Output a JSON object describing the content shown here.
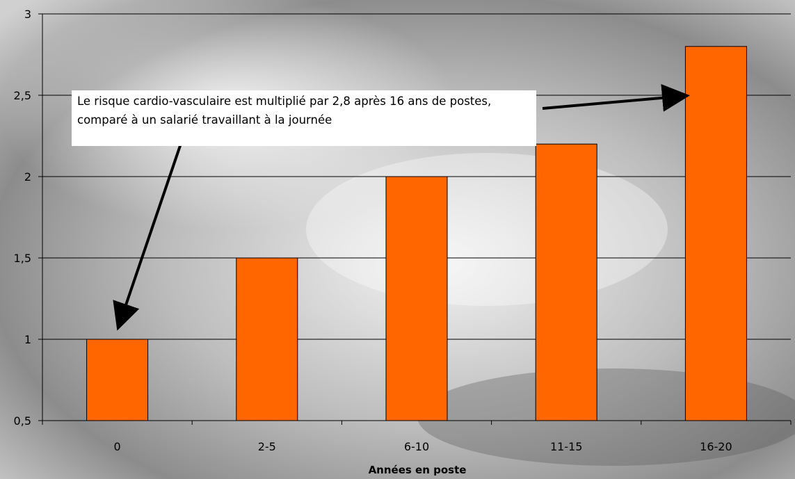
{
  "chart_data": {
    "type": "bar",
    "categories": [
      "0",
      "2-5",
      "6-10",
      "11-15",
      "16-20"
    ],
    "values": [
      1.0,
      1.5,
      2.0,
      2.2,
      2.8
    ],
    "title": "",
    "xlabel": "Années en poste",
    "ylabel": "",
    "ylim": [
      0.5,
      3
    ],
    "yticks": [
      "0,5",
      "1",
      "1,5",
      "2",
      "2,5",
      "3"
    ],
    "grid": true,
    "bar_color": "#ff6600",
    "annotation": "Le risque cardio-vasculaire est multiplié par 2,8 après 16 ans de postes, comparé à un salarié travaillant à la journée"
  }
}
